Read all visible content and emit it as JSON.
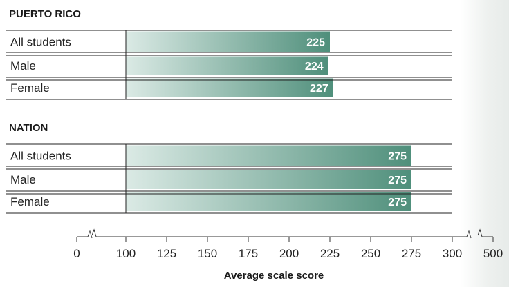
{
  "colors": {
    "bar_light": "#dbeae5",
    "bar_dark": "#4f8f7b",
    "label_text": "#ffffff",
    "rule": "#222222"
  },
  "chart_data": {
    "type": "bar",
    "orientation": "horizontal",
    "groups": [
      {
        "title": "PUERTO RICO",
        "categories": [
          "All students",
          "Male",
          "Female"
        ],
        "values": [
          225,
          224,
          227
        ]
      },
      {
        "title": "NATION",
        "categories": [
          "All students",
          "Male",
          "Female"
        ],
        "values": [
          275,
          275,
          275
        ]
      }
    ],
    "xlabel": "Average scale score",
    "x_ticks": [
      0,
      100,
      125,
      150,
      175,
      200,
      225,
      250,
      275,
      300,
      500
    ],
    "axis_breaks": [
      "0-100",
      "300-500"
    ],
    "xlim": [
      100,
      300
    ],
    "data_labels": true
  }
}
